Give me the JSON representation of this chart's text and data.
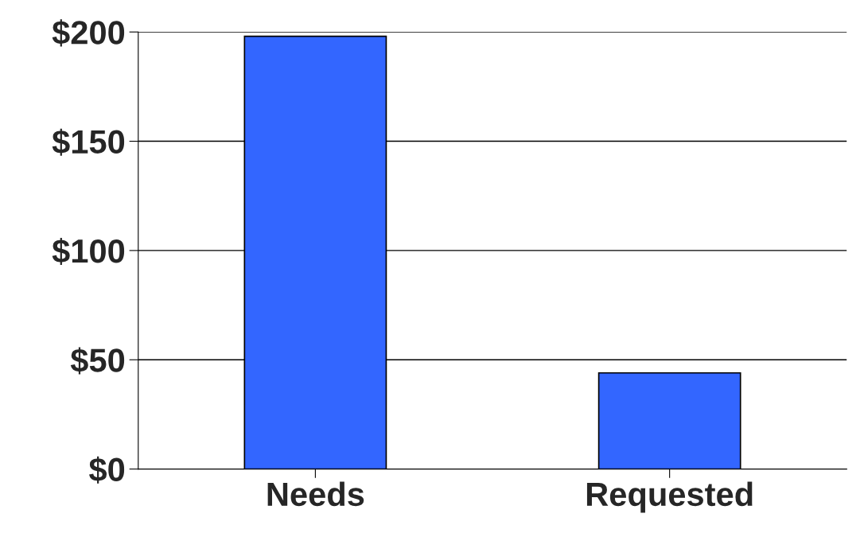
{
  "chart_data": {
    "type": "bar",
    "categories": [
      "Needs",
      "Requested"
    ],
    "values": [
      198,
      44
    ],
    "color": "#3366ff",
    "ylim": [
      0,
      200
    ],
    "yticks": [
      {
        "value": 0,
        "label": "$0"
      },
      {
        "value": 50,
        "label": "$50"
      },
      {
        "value": 100,
        "label": "$100"
      },
      {
        "value": 150,
        "label": "$150"
      },
      {
        "value": 200,
        "label": "$200"
      }
    ],
    "grid": "y"
  }
}
